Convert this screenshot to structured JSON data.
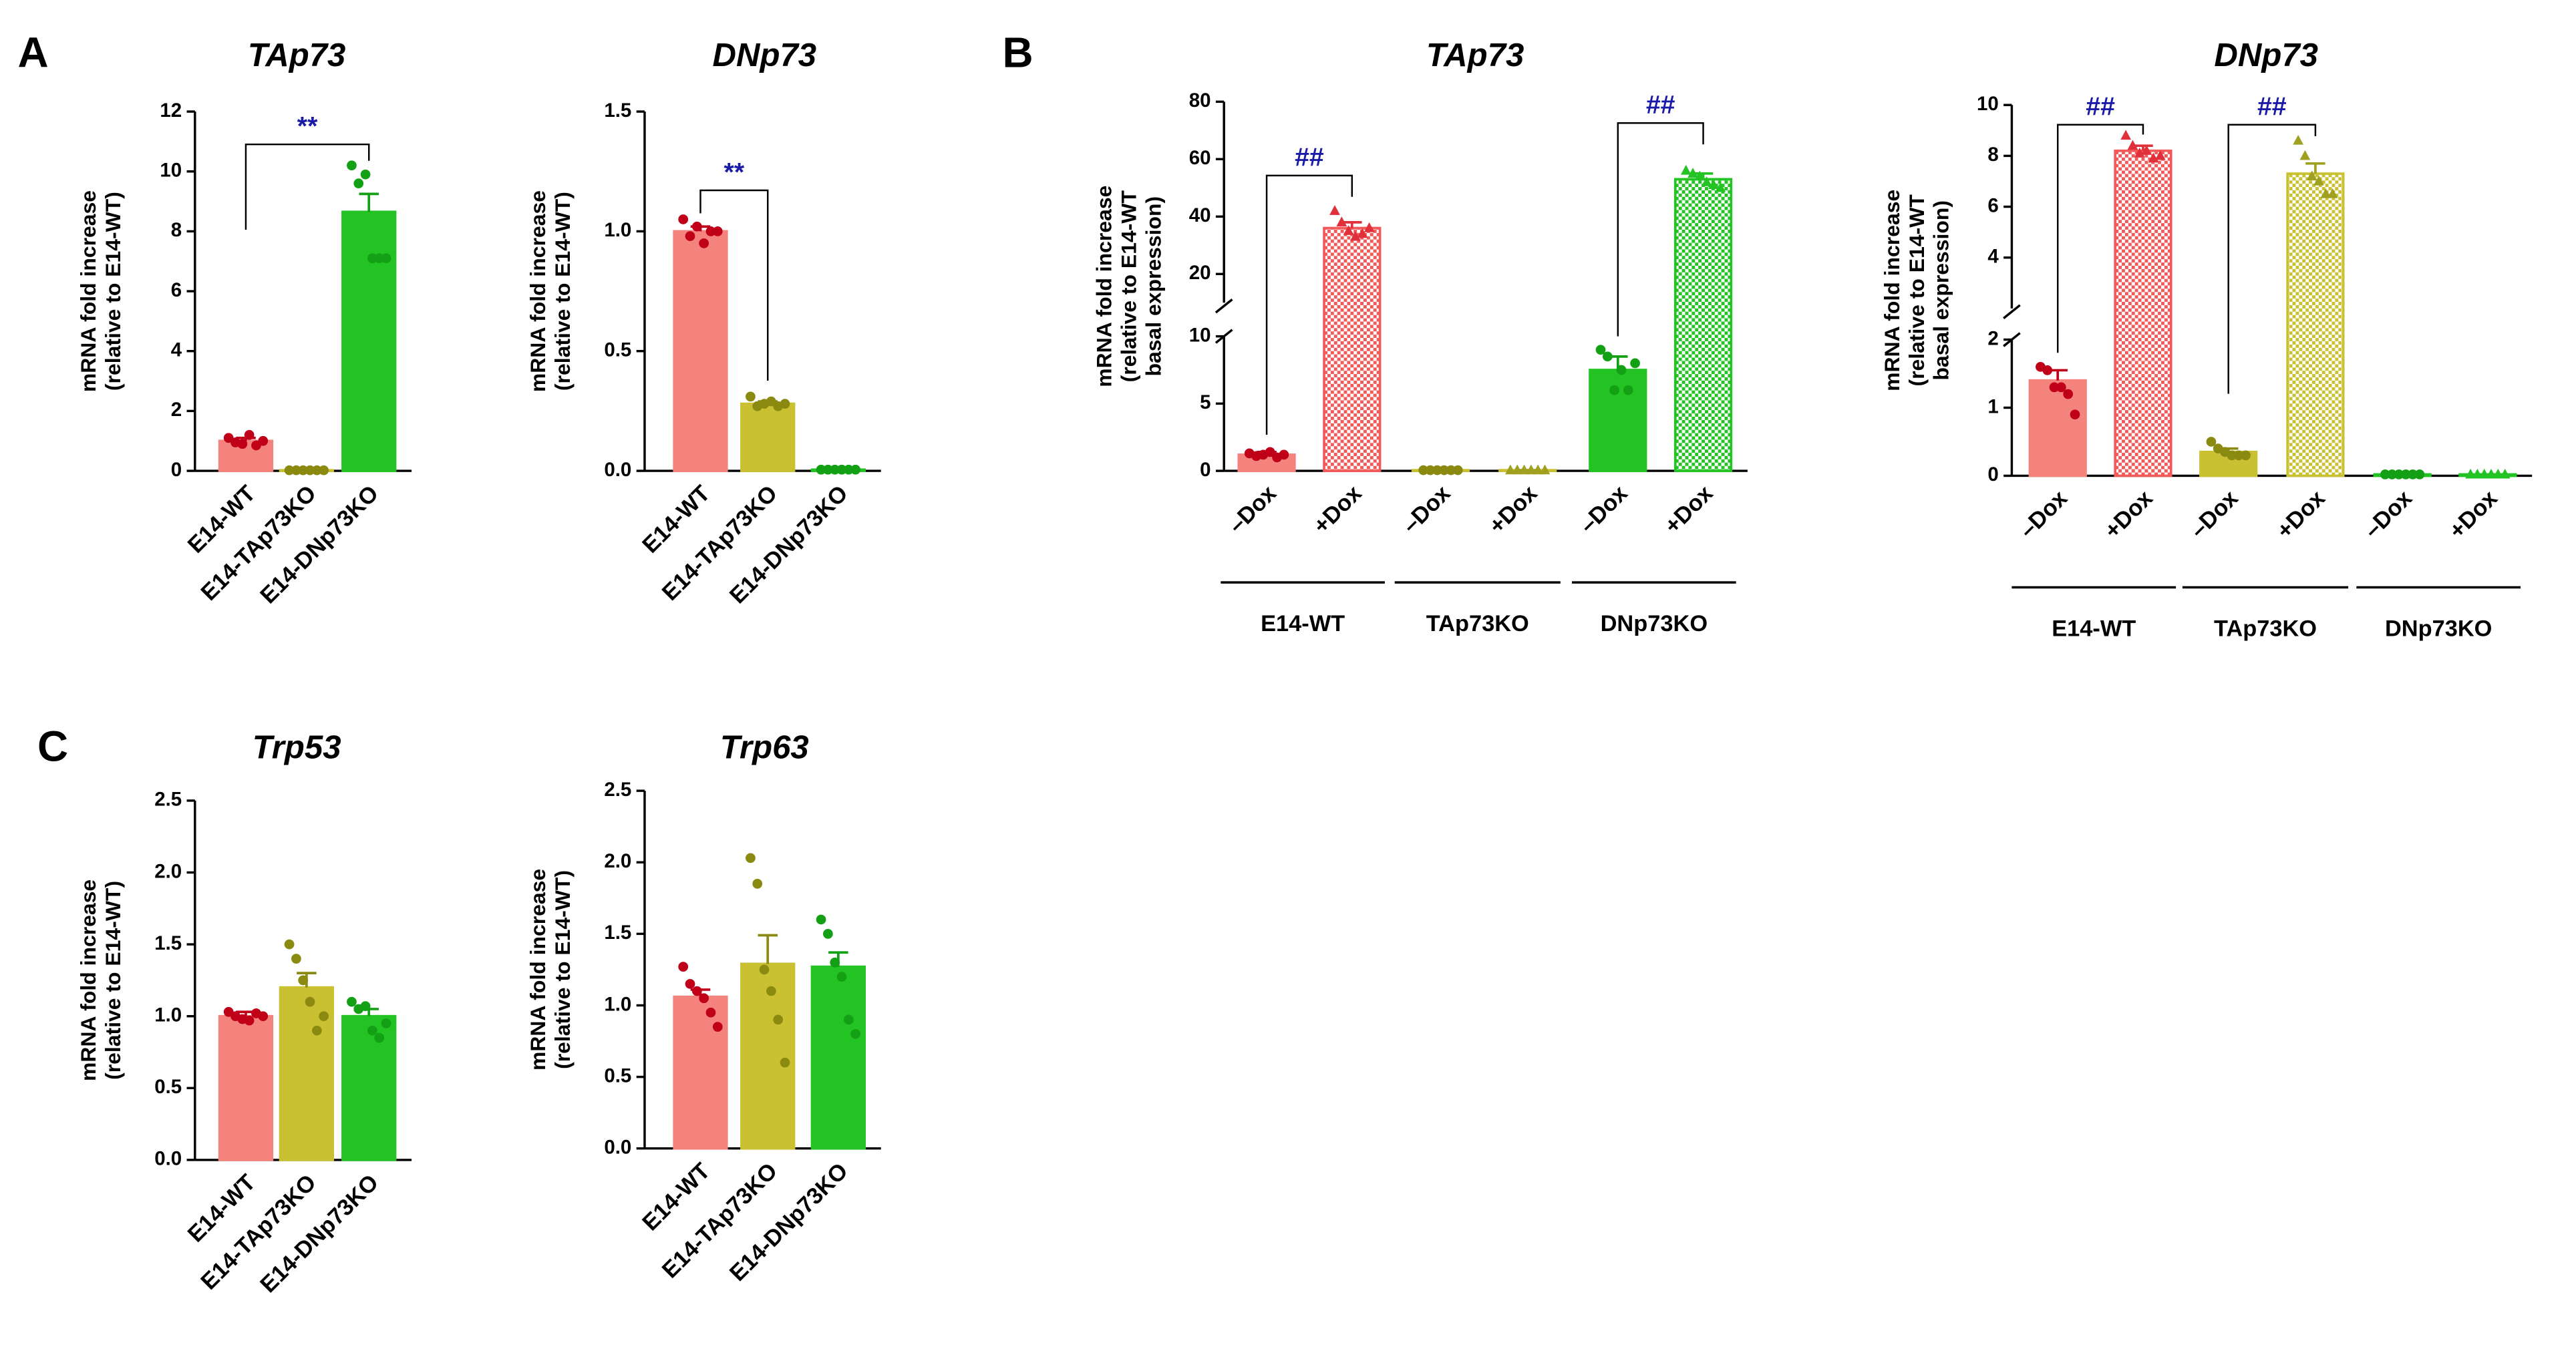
{
  "panel_labels": [
    "A",
    "B",
    "C"
  ],
  "chart_data": [
    {
      "type": "bar",
      "title": "TAp73",
      "ylabel": [
        "mRNA fold increase",
        "(relative to E14-WT)"
      ],
      "categories": [
        "E14-WT",
        "E14-TAp73KO",
        "E14-DNp73KO"
      ],
      "values": [
        1.0,
        0.02,
        8.65
      ],
      "errors": [
        0.1,
        0,
        0.6
      ],
      "points": [
        [
          1.1,
          0.95,
          0.9,
          1.2,
          0.85,
          1.0
        ],
        [
          0.02,
          0.02,
          0.02,
          0.02,
          0.02,
          0.02
        ],
        [
          10.2,
          9.6,
          9.9,
          7.1,
          7.1,
          7.1
        ]
      ],
      "colors": [
        "#f4837d",
        "#c9c132",
        "#22c322"
      ],
      "point_colors": [
        "#c00018",
        "#8a8a10",
        "#14a014"
      ],
      "markers": [
        "circle",
        "circle",
        "circle"
      ],
      "hatch": [
        false,
        false,
        false
      ],
      "ylim": [
        0,
        12
      ],
      "yticks": [
        0,
        2,
        4,
        6,
        8,
        10,
        12
      ],
      "annotations": [
        {
          "text": "**",
          "from": 0,
          "to": 2
        }
      ],
      "annotation_color": "#1a1aa8"
    },
    {
      "type": "bar",
      "title": "DNp73",
      "ylabel": [
        "mRNA fold increase",
        "(relative to E14-WT)"
      ],
      "categories": [
        "E14-WT",
        "E14-TAp73KO",
        "E14-DNp73KO"
      ],
      "values": [
        1.0,
        0.28,
        0.005
      ],
      "errors": [
        0.02,
        0.01,
        0
      ],
      "points": [
        [
          1.05,
          0.98,
          1.02,
          0.95,
          1.0,
          1.0
        ],
        [
          0.31,
          0.27,
          0.28,
          0.29,
          0.27,
          0.28
        ],
        [
          0.005,
          0.005,
          0.005,
          0.005,
          0.005,
          0.005
        ]
      ],
      "colors": [
        "#f4837d",
        "#c9c132",
        "#22c322"
      ],
      "point_colors": [
        "#c00018",
        "#8a8a10",
        "#14a014"
      ],
      "markers": [
        "circle",
        "circle",
        "circle"
      ],
      "hatch": [
        false,
        false,
        false
      ],
      "ylim": [
        0,
        1.5
      ],
      "yticks": [
        {
          "value": 0,
          "label": "0.0"
        },
        0.5,
        {
          "value": 1,
          "label": "1.0"
        },
        1.5
      ],
      "annotations": [
        {
          "text": "**",
          "from": 0,
          "to": 1
        }
      ],
      "annotation_color": "#1a1aa8"
    },
    {
      "type": "bar",
      "title": "TAp73",
      "ylabel": [
        "mRNA fold increase",
        "(relative to E14-WT",
        "basal expression)"
      ],
      "categories": [
        "–Dox",
        "+Dox",
        "–Dox",
        "+Dox",
        "–Dox",
        "+Dox"
      ],
      "groups": [
        "E14-WT",
        "TAp73KO",
        "DNp73KO"
      ],
      "values": [
        1.2,
        36,
        0.05,
        0.05,
        7.5,
        53
      ],
      "errors": [
        0.2,
        2,
        0,
        0,
        1,
        2
      ],
      "points": [
        [
          1.3,
          1.1,
          1.2,
          1.4,
          1.0,
          1.2
        ],
        [
          42,
          38,
          35,
          33,
          34,
          36
        ],
        [
          0.05,
          0.05,
          0.05,
          0.05,
          0.05,
          0.05
        ],
        [
          0.05,
          0.05,
          0.05,
          0.05,
          0.05,
          0.05
        ],
        [
          9,
          8.5,
          6,
          7.5,
          6,
          8
        ],
        [
          56,
          55,
          54,
          52,
          51,
          50
        ]
      ],
      "colors": [
        "#f4837d",
        "#f25a5a",
        "#c9c132",
        "#c9c132",
        "#22c322",
        "#22c322"
      ],
      "point_colors": [
        "#c00018",
        "#e0303a",
        "#8a8a10",
        "#a0a020",
        "#14a014",
        "#22c322"
      ],
      "markers": [
        "circle",
        "triangle",
        "circle",
        "triangle",
        "circle",
        "triangle"
      ],
      "hatch": [
        false,
        true,
        false,
        true,
        false,
        true
      ],
      "segments": [
        {
          "ylim": [
            0,
            10
          ],
          "yticks": [
            0,
            5,
            10
          ]
        },
        {
          "ylim": [
            10,
            80
          ],
          "yticks": [
            20,
            40,
            60,
            80
          ]
        }
      ],
      "annotations": [
        {
          "text": "##",
          "from": 0,
          "to": 1
        },
        {
          "text": "##",
          "from": 4,
          "to": 5
        }
      ],
      "annotation_color": "#1a1aa8"
    },
    {
      "type": "bar",
      "title": "DNp73",
      "ylabel": [
        "mRNA fold increase",
        "(relative to E14-WT",
        "basal expression)"
      ],
      "categories": [
        "–Dox",
        "+Dox",
        "–Dox",
        "+Dox",
        "–Dox",
        "+Dox"
      ],
      "groups": [
        "E14-WT",
        "TAp73KO",
        "DNp73KO"
      ],
      "values": [
        1.4,
        8.2,
        0.35,
        7.3,
        0.02,
        0.02
      ],
      "errors": [
        0.15,
        0.2,
        0.05,
        0.4,
        0,
        0
      ],
      "points": [
        [
          1.6,
          1.55,
          1.3,
          1.3,
          1.2,
          0.9
        ],
        [
          8.8,
          8.4,
          8.1,
          8.2,
          7.9,
          8.0
        ],
        [
          0.5,
          0.4,
          0.35,
          0.3,
          0.3,
          0.3
        ],
        [
          8.6,
          8.0,
          7.2,
          7.0,
          6.5,
          6.5
        ],
        [
          0.02,
          0.02,
          0.02,
          0.02,
          0.02,
          0.02
        ],
        [
          0.02,
          0.02,
          0.02,
          0.02,
          0.02,
          0.02
        ]
      ],
      "colors": [
        "#f4837d",
        "#f25a5a",
        "#c9c132",
        "#c9c132",
        "#22c322",
        "#22c322"
      ],
      "point_colors": [
        "#c00018",
        "#e0303a",
        "#8a8a10",
        "#a0a020",
        "#14a014",
        "#22c322"
      ],
      "markers": [
        "circle",
        "triangle",
        "circle",
        "triangle",
        "circle",
        "triangle"
      ],
      "hatch": [
        false,
        true,
        false,
        true,
        false,
        true
      ],
      "segments": [
        {
          "ylim": [
            0,
            2
          ],
          "yticks": [
            0,
            1,
            2
          ]
        },
        {
          "ylim": [
            2,
            10
          ],
          "yticks": [
            4,
            6,
            8,
            10
          ]
        }
      ],
      "annotations": [
        {
          "text": "##",
          "from": 0,
          "to": 1
        },
        {
          "text": "##",
          "from": 2,
          "to": 3
        }
      ],
      "annotation_color": "#1a1aa8"
    },
    {
      "type": "bar",
      "title": "Trp53",
      "ylabel": [
        "mRNA fold increase",
        "(relative to E14-WT)"
      ],
      "categories": [
        "E14-WT",
        "E14-TAp73KO",
        "E14-DNp73KO"
      ],
      "values": [
        1.0,
        1.2,
        1.0
      ],
      "errors": [
        0.03,
        0.1,
        0.05
      ],
      "points": [
        [
          1.03,
          1.0,
          0.98,
          0.97,
          1.02,
          1.0
        ],
        [
          1.5,
          1.4,
          1.25,
          1.1,
          0.9,
          1.0
        ],
        [
          1.1,
          1.05,
          1.07,
          0.9,
          0.85,
          0.95
        ]
      ],
      "colors": [
        "#f4837d",
        "#c9c132",
        "#22c322"
      ],
      "point_colors": [
        "#c00018",
        "#8a8a10",
        "#14a014"
      ],
      "markers": [
        "circle",
        "circle",
        "circle"
      ],
      "hatch": [
        false,
        false,
        false
      ],
      "ylim": [
        0,
        2.5
      ],
      "yticks": [
        {
          "value": 0,
          "label": "0.0"
        },
        0.5,
        {
          "value": 1,
          "label": "1.0"
        },
        1.5,
        {
          "value": 2,
          "label": "2.0"
        },
        2.5
      ]
    },
    {
      "type": "bar",
      "title": "Trp63",
      "ylabel": [
        "mRNA fold increase",
        "(relative to E14-WT)"
      ],
      "categories": [
        "E14-WT",
        "E14-TAp73KO",
        "E14-DNp73KO"
      ],
      "values": [
        1.06,
        1.29,
        1.27
      ],
      "errors": [
        0.05,
        0.2,
        0.1
      ],
      "points": [
        [
          1.27,
          1.15,
          1.1,
          1.05,
          0.95,
          0.85
        ],
        [
          2.03,
          1.85,
          1.25,
          1.1,
          0.9,
          0.6
        ],
        [
          1.6,
          1.5,
          1.3,
          1.2,
          0.9,
          0.8
        ]
      ],
      "colors": [
        "#f4837d",
        "#c9c132",
        "#22c322"
      ],
      "point_colors": [
        "#c00018",
        "#8a8a10",
        "#14a014"
      ],
      "markers": [
        "circle",
        "circle",
        "circle"
      ],
      "hatch": [
        false,
        false,
        false
      ],
      "ylim": [
        0,
        2.5
      ],
      "yticks": [
        {
          "value": 0,
          "label": "0.0"
        },
        0.5,
        {
          "value": 1,
          "label": "1.0"
        },
        1.5,
        {
          "value": 2,
          "label": "2.0"
        },
        2.5
      ]
    }
  ]
}
